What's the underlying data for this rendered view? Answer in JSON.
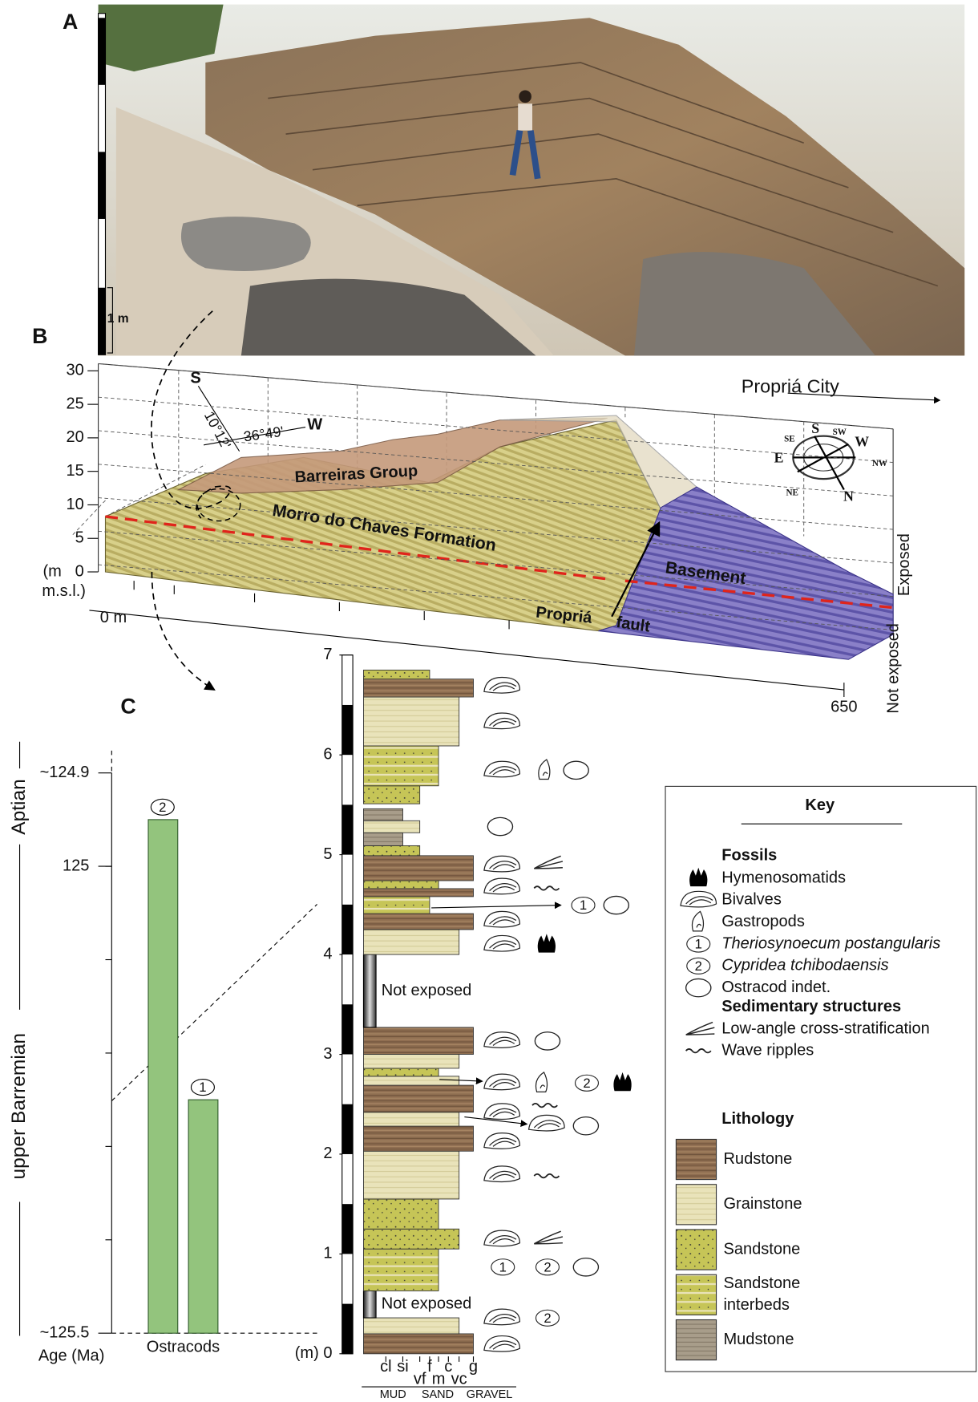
{
  "panel_labels": [
    "A",
    "B",
    "C"
  ],
  "photo": {
    "scale_label": "1 m"
  },
  "block_diagram": {
    "height_ticks": [
      0,
      5,
      10,
      15,
      20,
      25,
      30
    ],
    "height_unit": [
      "(m",
      "m.s.l.)"
    ],
    "distance_labels": [
      "0 m",
      "650"
    ],
    "latitude_letter": "S",
    "latitude": "10°12'",
    "longitude": "36°49'",
    "longitude_letter": "W",
    "direction": "Propriá City",
    "units": [
      "Barreiras Group",
      "Morro do Chaves Formation",
      "Basement"
    ],
    "locality": "Propriá",
    "fault": "fault",
    "exposure": [
      "Exposed",
      "Not exposed"
    ],
    "compass": [
      "S",
      "SW",
      "W",
      "SE",
      "E",
      "NW",
      "NE",
      "N"
    ]
  },
  "age_chart": {
    "ticks": [
      {
        "value": 124.9,
        "label": "~124.9"
      },
      125,
      {
        "value": 125.5,
        "label": "~125.5"
      }
    ],
    "stages": [
      "Aptian",
      "upper Barremian"
    ],
    "axis_label": "Age (Ma)",
    "x_label": "Ostracods",
    "ranges": [
      {
        "symbol": "2",
        "oldest": 125.5,
        "youngest": 124.95
      },
      {
        "symbol": "1",
        "oldest": 125.5,
        "youngest": 125.25
      }
    ]
  },
  "section": {
    "depth_ticks": [
      0,
      1,
      2,
      3,
      4,
      5,
      6,
      7
    ],
    "depth_unit": "(m)",
    "grain_sizes": [
      "cl",
      "si",
      "vf",
      "f",
      "m",
      "c",
      "vc",
      "g"
    ],
    "grain_groups": [
      "MUD",
      "SAND",
      "GRAVEL"
    ],
    "beds": [
      {
        "bottom": 0.0,
        "top": 0.2,
        "lithology": 0,
        "grain_size": 7
      },
      {
        "bottom": 0.2,
        "top": 0.36,
        "lithology": 1,
        "grain_size": 6
      },
      {
        "bottom": 0.36,
        "top": 0.63,
        "label": "Not exposed"
      },
      {
        "bottom": 0.63,
        "top": 1.05,
        "lithology": 3,
        "grain_size": 4
      },
      {
        "bottom": 1.05,
        "top": 1.25,
        "lithology": 2,
        "grain_size": 6
      },
      {
        "bottom": 1.25,
        "top": 1.55,
        "lithology": 2,
        "grain_size": 4
      },
      {
        "bottom": 1.55,
        "top": 2.03,
        "lithology": 1,
        "grain_size": 6
      },
      {
        "bottom": 2.03,
        "top": 2.28,
        "lithology": 0,
        "grain_size": 7
      },
      {
        "bottom": 2.28,
        "top": 2.42,
        "lithology": 1,
        "grain_size": 6
      },
      {
        "bottom": 2.42,
        "top": 2.69,
        "lithology": 0,
        "grain_size": 7
      },
      {
        "bottom": 2.69,
        "top": 2.78,
        "lithology": 1,
        "grain_size": 6
      },
      {
        "bottom": 2.78,
        "top": 2.86,
        "lithology": 2,
        "grain_size": 4
      },
      {
        "bottom": 2.86,
        "top": 3.0,
        "lithology": 1,
        "grain_size": 6
      },
      {
        "bottom": 3.0,
        "top": 3.27,
        "lithology": 0,
        "grain_size": 7
      },
      {
        "bottom": 3.27,
        "top": 4.0,
        "label": "Not exposed"
      },
      {
        "bottom": 4.0,
        "top": 4.25,
        "lithology": 1,
        "grain_size": 6
      },
      {
        "bottom": 4.25,
        "top": 4.41,
        "lithology": 0,
        "grain_size": 7
      },
      {
        "bottom": 4.41,
        "top": 4.58,
        "lithology": 3,
        "grain_size": 3
      },
      {
        "bottom": 4.58,
        "top": 4.66,
        "lithology": 0,
        "grain_size": 7
      },
      {
        "bottom": 4.66,
        "top": 4.74,
        "lithology": 2,
        "grain_size": 4
      },
      {
        "bottom": 4.74,
        "top": 4.99,
        "lithology": 0,
        "grain_size": 7
      },
      {
        "bottom": 4.99,
        "top": 5.09,
        "lithology": 2,
        "grain_size": 2
      },
      {
        "bottom": 5.09,
        "top": 5.22,
        "lithology": 4,
        "grain_size": 1
      },
      {
        "bottom": 5.22,
        "top": 5.34,
        "lithology": 1,
        "grain_size": 2
      },
      {
        "bottom": 5.34,
        "top": 5.46,
        "lithology": 4,
        "grain_size": 1
      },
      {
        "bottom": 5.51,
        "top": 5.69,
        "lithology": 2,
        "grain_size": 2
      },
      {
        "bottom": 5.69,
        "top": 6.09,
        "lithology": 3,
        "grain_size": 4
      },
      {
        "bottom": 6.09,
        "top": 6.58,
        "lithology": 1,
        "grain_size": 6
      },
      {
        "bottom": 6.58,
        "top": 6.76,
        "lithology": 0,
        "grain_size": 7
      },
      {
        "bottom": 6.76,
        "top": 6.85,
        "lithology": 2,
        "grain_size": 3
      }
    ]
  },
  "key": {
    "title": "Key",
    "fossils": {
      "heading": "Fossils",
      "items": [
        {
          "name": "Hymenosomatids"
        },
        {
          "name": "Bivalves"
        },
        {
          "name": "Gastropods"
        },
        {
          "symbol": "1",
          "name": "Theriosynoecum postangularis"
        },
        {
          "symbol": "2",
          "name": "Cypridea tchibodaensis"
        },
        {
          "name": "Ostracod indet."
        }
      ]
    },
    "structures": {
      "heading": "Sedimentary structures",
      "items": [
        "Low-angle cross-stratification",
        "Wave ripples"
      ]
    },
    "lithology": {
      "heading": "Lithology",
      "items": [
        [
          "Rudstone"
        ],
        [
          "Grainstone"
        ],
        [
          "Sandstone"
        ],
        [
          "Sandstone",
          "interbeds"
        ],
        [
          "Mudstone"
        ]
      ]
    }
  }
}
